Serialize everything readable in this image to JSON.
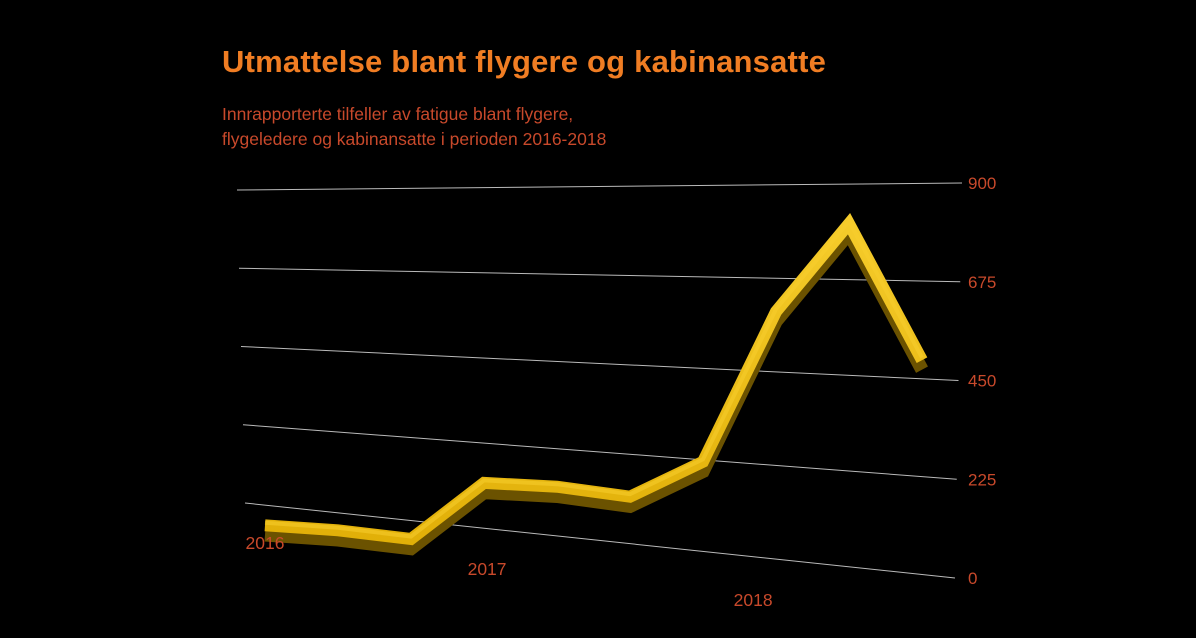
{
  "header": {
    "title": "Utmattelse blant flygere og kabinansatte",
    "subtitle_line1": "Innrapporterte tilfeller av fatigue blant flygere,",
    "subtitle_line2": "flygeledere og kabinansatte i perioden 2016-2018"
  },
  "colors": {
    "background": "#000000",
    "title": "#F07D23",
    "subtitle": "#C8492B",
    "axis_label": "#C8492B",
    "gridline": "#CFCFCF",
    "line_top": "#F7CE2E",
    "line_bottom": "#E0AE06",
    "line_depth": "#6B5200"
  },
  "chart_data": {
    "type": "line",
    "style": "3d-perspective-line",
    "title": "Utmattelse blant flygere og kabinansatte",
    "subtitle": "Innrapporterte tilfeller av fatigue blant flygere, flygeledere og kabinansatte i perioden 2016-2018",
    "ylim": [
      0,
      900
    ],
    "y_tick_labels": [
      0,
      225,
      450,
      675,
      900
    ],
    "x_year_ticks": [
      {
        "label": "2016",
        "f": 0.0
      },
      {
        "label": "2017",
        "f": 0.338
      },
      {
        "label": "2018",
        "f": 0.743
      }
    ],
    "series": [
      {
        "name": "Innrapporterte tilfeller av fatigue",
        "values": [
          120,
          115,
          100,
          255,
          250,
          230,
          320,
          680,
          880,
          560
        ]
      }
    ],
    "grid": "horizontal",
    "legend": "none"
  }
}
